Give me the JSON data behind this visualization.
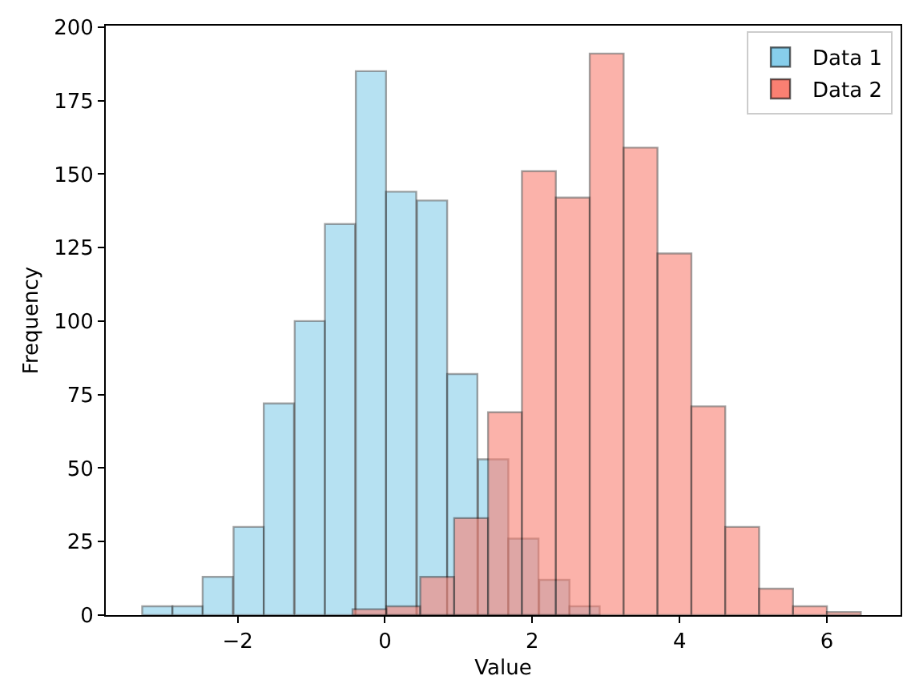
{
  "chart_data": {
    "type": "bar",
    "xlabel": "Value",
    "ylabel": "Frequency",
    "series": [
      {
        "name": "Data 1",
        "color": "#87ceeb",
        "x": [
          -3.09,
          -2.68,
          -2.27,
          -1.85,
          -1.44,
          -1.02,
          -0.61,
          -0.19,
          0.22,
          0.64,
          1.05,
          1.47,
          1.88,
          2.3,
          2.71
        ],
        "values": [
          3,
          3,
          13,
          30,
          72,
          100,
          133,
          185,
          144,
          141,
          82,
          53,
          26,
          12,
          3
        ]
      },
      {
        "name": "Data 2",
        "color": "#fa8072",
        "x": [
          -0.21,
          0.25,
          0.71,
          1.17,
          1.63,
          2.09,
          2.55,
          3.01,
          3.47,
          3.93,
          4.39,
          4.85,
          5.31,
          5.77,
          6.23
        ],
        "values": [
          2,
          3,
          13,
          33,
          69,
          151,
          142,
          191,
          159,
          123,
          71,
          30,
          9,
          3,
          1
        ]
      }
    ],
    "xlim": [
      -3.79,
      7.0
    ],
    "xticks": [
      {
        "value": -2,
        "label": "−2"
      },
      0,
      2,
      4,
      6
    ],
    "ylim": [
      0,
      200.5
    ],
    "yticks": [
      0,
      25,
      50,
      75,
      100,
      125,
      150,
      175,
      200
    ],
    "legend": "top right"
  }
}
